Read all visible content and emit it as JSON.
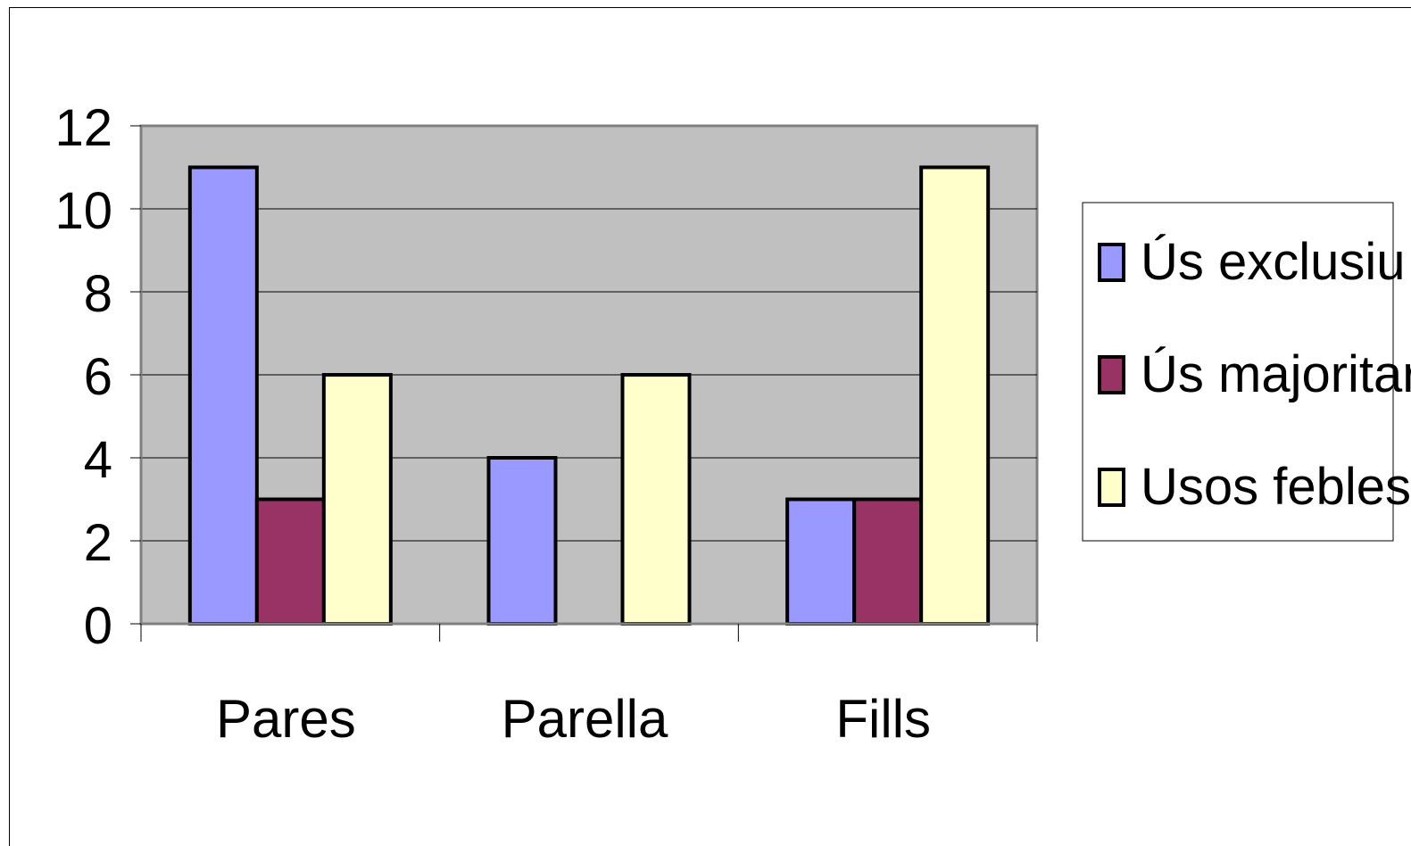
{
  "chart_data": {
    "type": "bar",
    "categories": [
      "Pares",
      "Parella",
      "Fills"
    ],
    "series": [
      {
        "name": "Ús exclusiu",
        "values": [
          11,
          4,
          3
        ],
        "color": "#9999ff"
      },
      {
        "name": "Ús majoritari",
        "values": [
          3,
          0,
          3
        ],
        "color": "#993366"
      },
      {
        "name": "Usos febles",
        "values": [
          6,
          6,
          11
        ],
        "color": "#ffffcc"
      }
    ],
    "ylim": [
      0,
      12
    ],
    "yticks": [
      0,
      2,
      4,
      6,
      8,
      10,
      12
    ],
    "grid": true,
    "plot_background": "#c0c0c0",
    "legend_position": "right"
  }
}
